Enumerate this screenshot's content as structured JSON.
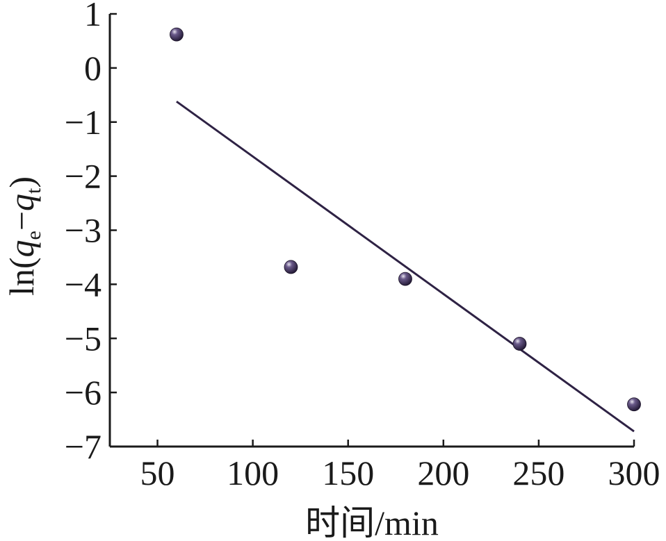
{
  "chart_data": {
    "type": "scatter",
    "xlabel": "时间/min",
    "ylabel_parts": [
      "ln(",
      "q",
      "e",
      "−",
      "q",
      "t",
      ")"
    ],
    "xlim": [
      25,
      300
    ],
    "ylim": [
      -7,
      1
    ],
    "x_ticks": [
      50,
      100,
      150,
      200,
      250,
      300
    ],
    "x_tick_labels": [
      "50",
      "100",
      "150",
      "200",
      "250",
      "300"
    ],
    "y_ticks": [
      1,
      0,
      -1,
      -2,
      -3,
      -4,
      -5,
      -6,
      -7
    ],
    "y_tick_labels": [
      "1",
      "0",
      "−1",
      "−2",
      "−3",
      "−4",
      "−5",
      "−6",
      "−7"
    ],
    "grid": false,
    "series": [
      {
        "points": [
          {
            "x": 60,
            "y": 0.62
          },
          {
            "x": 120,
            "y": -3.68
          },
          {
            "x": 180,
            "y": -3.9
          },
          {
            "x": 240,
            "y": -5.1
          },
          {
            "x": 300,
            "y": -6.22
          }
        ]
      }
    ],
    "fit_line": {
      "x1": 60,
      "y1": -0.62,
      "x2": 300,
      "y2": -6.72
    },
    "colors": {
      "marker": "#2e2244",
      "line": "#2e2244",
      "axis": "#1a1a1a"
    }
  }
}
